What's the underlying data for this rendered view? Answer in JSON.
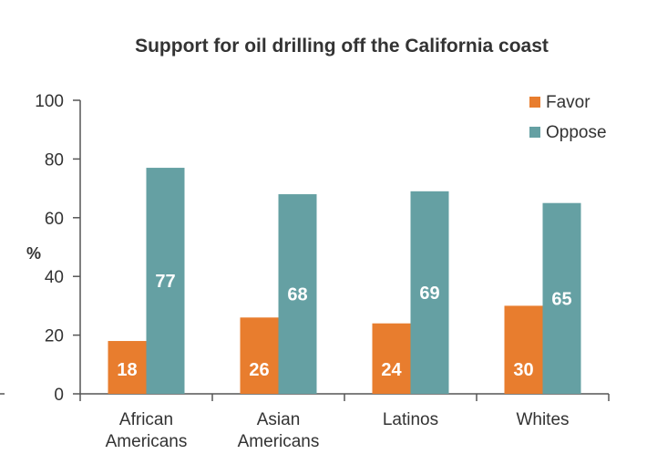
{
  "chart_data": {
    "type": "bar",
    "title": "Support for oil drilling off the California coast",
    "xlabel": "",
    "ylabel": "%",
    "ylim": [
      0,
      100
    ],
    "yticks": [
      0,
      20,
      40,
      60,
      80,
      100
    ],
    "categories": [
      [
        "African",
        "Americans"
      ],
      [
        "Asian",
        "Americans"
      ],
      [
        "Latinos"
      ],
      [
        "Whites"
      ]
    ],
    "series": [
      {
        "name": "Favor",
        "color": "#e87d2e",
        "values": [
          18,
          26,
          24,
          30
        ]
      },
      {
        "name": "Oppose",
        "color": "#65a0a3",
        "values": [
          77,
          68,
          69,
          65
        ]
      }
    ],
    "legend_position": "top-right",
    "grid": false,
    "data_labels": true
  }
}
